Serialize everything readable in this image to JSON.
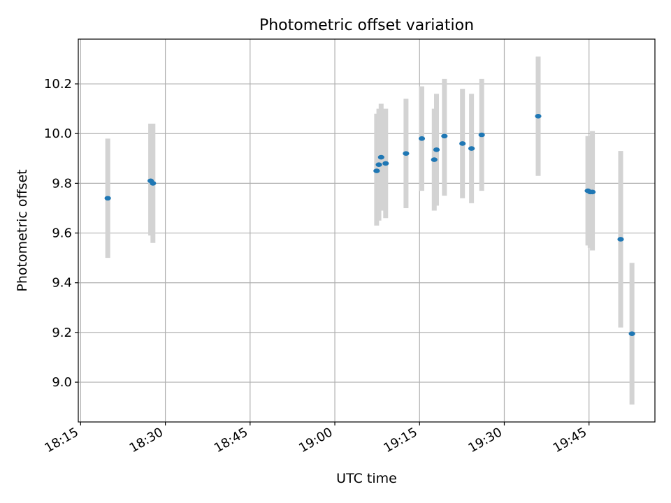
{
  "chart_data": {
    "type": "scatter",
    "title": "Photometric offset variation",
    "xlabel": "UTC time",
    "ylabel": "Photometric offset",
    "x_unit": "UTC time (HH:MM)",
    "xlim": [
      "18:14:35",
      "19:56:40"
    ],
    "ylim": [
      8.84,
      10.38
    ],
    "x_ticks": [
      "18:15",
      "18:30",
      "18:45",
      "19:00",
      "19:15",
      "19:30",
      "19:45"
    ],
    "y_ticks": [
      "9.0",
      "9.2",
      "9.4",
      "9.6",
      "9.8",
      "10.0",
      "10.2"
    ],
    "grid": true,
    "series": [
      {
        "color": "#1f77b4",
        "errorbar_color": "#d3d3d3",
        "points": [
          {
            "t": "18:19:48",
            "y": 9.74,
            "lo": 9.5,
            "hi": 9.98
          },
          {
            "t": "18:27:24",
            "y": 9.81,
            "lo": 9.59,
            "hi": 10.04
          },
          {
            "t": "18:27:48",
            "y": 9.8,
            "lo": 9.56,
            "hi": 10.04
          },
          {
            "t": "19:07:24",
            "y": 9.85,
            "lo": 9.63,
            "hi": 10.08
          },
          {
            "t": "19:07:48",
            "y": 9.875,
            "lo": 9.65,
            "hi": 10.1
          },
          {
            "t": "19:08:12",
            "y": 9.905,
            "lo": 9.69,
            "hi": 10.12
          },
          {
            "t": "19:09:00",
            "y": 9.88,
            "lo": 9.66,
            "hi": 10.1
          },
          {
            "t": "19:12:36",
            "y": 9.92,
            "lo": 9.7,
            "hi": 10.14
          },
          {
            "t": "19:15:24",
            "y": 9.98,
            "lo": 9.77,
            "hi": 10.19
          },
          {
            "t": "19:17:36",
            "y": 9.895,
            "lo": 9.69,
            "hi": 10.1
          },
          {
            "t": "19:18:00",
            "y": 9.935,
            "lo": 9.71,
            "hi": 10.16
          },
          {
            "t": "19:19:24",
            "y": 9.99,
            "lo": 9.75,
            "hi": 10.22
          },
          {
            "t": "19:22:36",
            "y": 9.96,
            "lo": 9.74,
            "hi": 10.18
          },
          {
            "t": "19:24:12",
            "y": 9.94,
            "lo": 9.72,
            "hi": 10.16
          },
          {
            "t": "19:26:00",
            "y": 9.995,
            "lo": 9.77,
            "hi": 10.22
          },
          {
            "t": "19:36:00",
            "y": 10.07,
            "lo": 9.83,
            "hi": 10.31
          },
          {
            "t": "19:44:48",
            "y": 9.77,
            "lo": 9.55,
            "hi": 9.99
          },
          {
            "t": "19:45:12",
            "y": 9.765,
            "lo": 9.54,
            "hi": 9.99
          },
          {
            "t": "19:45:36",
            "y": 9.765,
            "lo": 9.53,
            "hi": 10.01
          },
          {
            "t": "19:50:36",
            "y": 9.575,
            "lo": 9.22,
            "hi": 9.93
          },
          {
            "t": "19:52:36",
            "y": 9.195,
            "lo": 8.91,
            "hi": 9.48
          }
        ]
      }
    ]
  }
}
